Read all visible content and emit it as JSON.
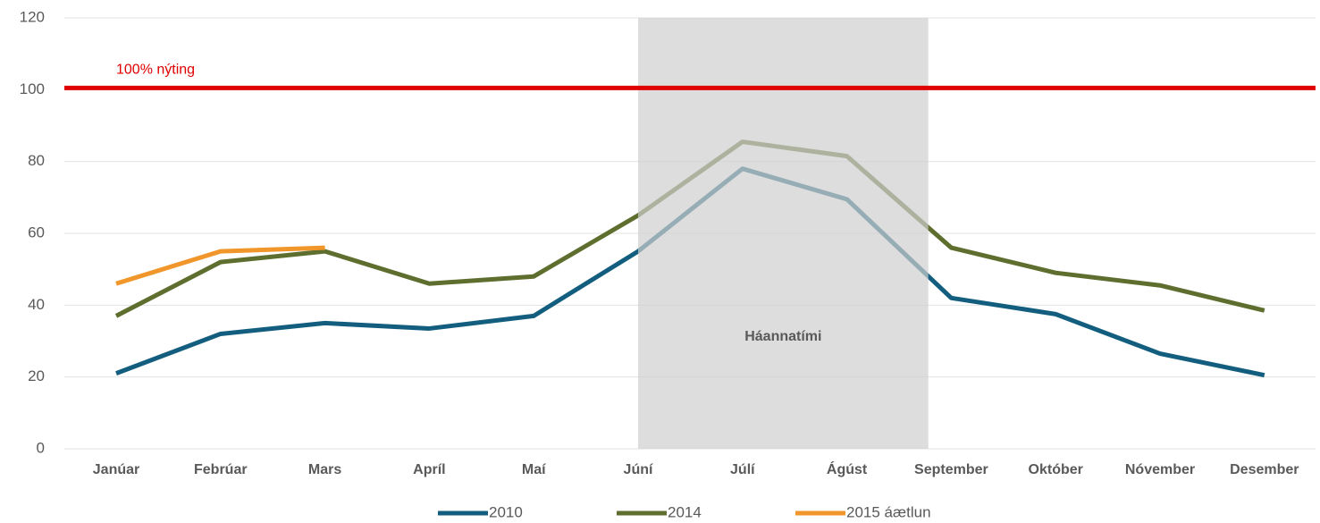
{
  "chart_data": {
    "type": "line",
    "categories": [
      "Janúar",
      "Febrúar",
      "Mars",
      "Apríl",
      "Maí",
      "Júní",
      "Júlí",
      "Ágúst",
      "September",
      "Október",
      "Nóvember",
      "Desember"
    ],
    "series": [
      {
        "name": "2010",
        "color": "#135e7e",
        "values": [
          21,
          32,
          35,
          33.5,
          37,
          55,
          78,
          69.5,
          42,
          37.5,
          26.5,
          20.5
        ]
      },
      {
        "name": "2014",
        "color": "#5e6e2e",
        "values": [
          37,
          52,
          55,
          46,
          48,
          65,
          85.5,
          81.5,
          56,
          49,
          45.5,
          38.5
        ]
      },
      {
        "name": "2015 áætlun",
        "color": "#f0962a",
        "values": [
          46,
          55,
          56,
          null,
          null,
          null,
          null,
          null,
          null,
          null,
          null,
          null
        ]
      }
    ],
    "ylim": [
      0,
      120
    ],
    "yticks": [
      0,
      20,
      40,
      60,
      80,
      100,
      120
    ],
    "grid": true,
    "reference_line": {
      "value": 100.5,
      "label": "100% nýting",
      "color": "#e00000"
    },
    "highlight": {
      "label": "Háannatími",
      "from": 5,
      "to": 7.78
    },
    "legend": "bottom"
  }
}
